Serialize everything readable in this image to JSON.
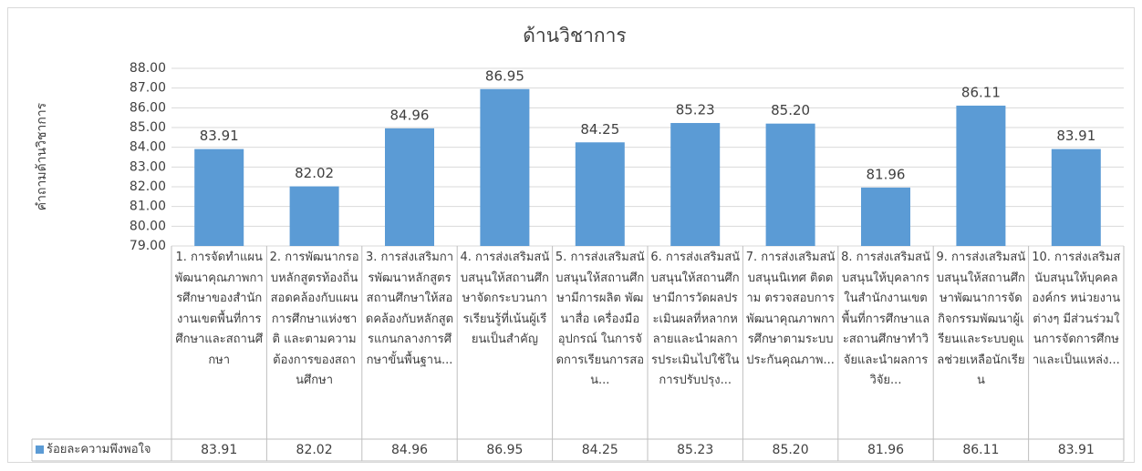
{
  "chart_data": {
    "type": "bar",
    "title": "ด้านวิชาการ",
    "y_label": "คำถามด้านวิชาการ",
    "categories": [
      "1. การจัดทำแผนพัฒนาคุณภาพการศึกษาของสำนักงานเขตพื้นที่การศึกษาและสถานศึกษา",
      "2. การพัฒนากรอบหลักสูตรท้องถิ่นสอดคล้องกับแผนการศึกษาแห่งชาติ และตามความต้องการของสถานศึกษา",
      "3. การส่งเสริมการพัฒนาหลักสูตรสถานศึกษาให้สอดคล้องกับหลักสูตรแกนกลางการศึกษาขั้นพื้นฐาน...",
      "4. การส่งเสริมสนับสนุนให้สถานศึกษาจัดกระบวนการเรียนรู้ที่เน้นผู้เรียนเป็นสำคัญ",
      "5. การส่งเสริมสนับสนุนให้สถานศึกษามีการผลิต พัฒนาสื่อ เครื่องมือ อุปกรณ์ ในการจัดการเรียนการสอน...",
      "6. การส่งเสริมสนับสนุนให้สถานศึกษามีการวัดผลประเมินผลที่หลากหลายและนำผลการประเมินไปใช้ในการปรับปรุง...",
      "7. การส่งเสริมสนับสนุนนิเทศ ติดตาม ตรวจสอบการพัฒนาคุณภาพการศึกษาตามระบบประกันคุณภาพ...",
      "8. การส่งเสริมสนับสนุนให้บุคลากรในสำนักงานเขตพื้นที่การศึกษาและสถานศึกษาทำวิจัยและนำผลการวิจัย...",
      "9. การส่งเสริมสนับสนุนให้สถานศึกษาพัฒนาการจัดกิจกรรมพัฒนาผู้เรียนและระบบดูแลช่วยเหลือนักเรียน",
      "10. การส่งเสริมสนับสนุนให้บุคคล องค์กร หน่วยงานต่างๆ มีส่วนร่วมในการจัดการศึกษาและเป็นแหล่ง..."
    ],
    "series": [
      {
        "name": "ร้อยละความพึงพอใจ",
        "color": "#5b9bd5",
        "values": [
          83.91,
          82.02,
          84.96,
          86.95,
          84.25,
          85.23,
          85.2,
          81.96,
          86.11,
          83.91
        ],
        "value_labels": [
          "83.91",
          "82.02",
          "84.96",
          "86.95",
          "84.25",
          "85.23",
          "85.20",
          "81.96",
          "86.11",
          "83.91"
        ]
      }
    ],
    "ylim": [
      79,
      88
    ],
    "yticks": [
      {
        "value": 79,
        "label": "79.00"
      },
      {
        "value": 80,
        "label": "80.00"
      },
      {
        "value": 81,
        "label": "81.00"
      },
      {
        "value": 82,
        "label": "82.00"
      },
      {
        "value": 83,
        "label": "83.00"
      },
      {
        "value": 84,
        "label": "84.00"
      },
      {
        "value": 85,
        "label": "85.00"
      },
      {
        "value": 86,
        "label": "86.00"
      },
      {
        "value": 87,
        "label": "87.00"
      },
      {
        "value": 88,
        "label": "88.00"
      }
    ],
    "grid": true,
    "data_table": true
  }
}
